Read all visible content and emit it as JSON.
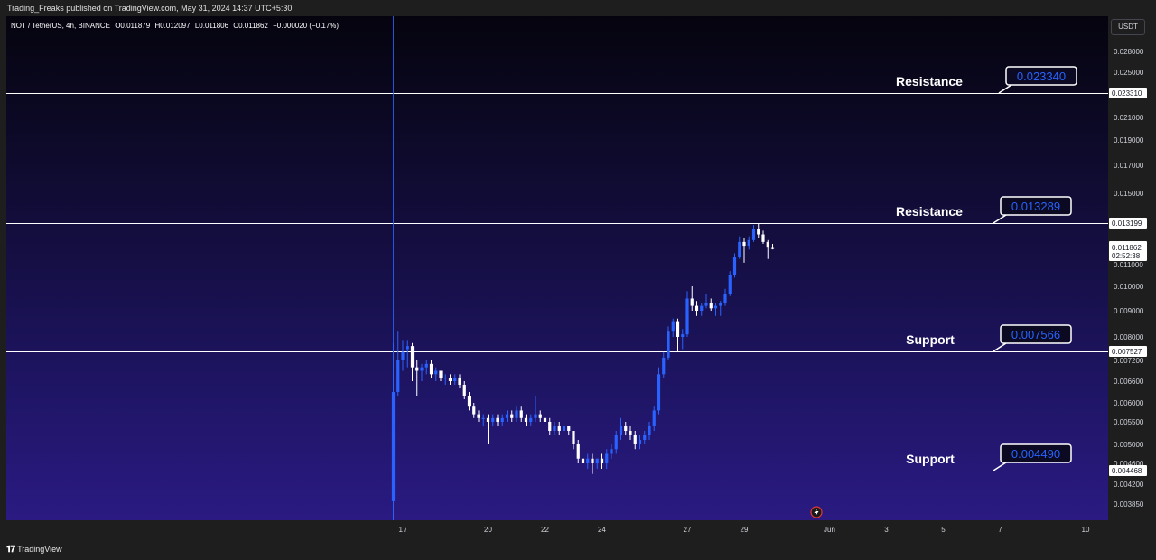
{
  "publish_text": "Trading_Freaks published on TradingView.com, May 31, 2024 14:37 UTC+5:30",
  "legend": {
    "symbol": "NOT / TetherUS, 4h, BINANCE",
    "open": "O0.011879",
    "high": "H0.012097",
    "low": "L0.011806",
    "close": "C0.011862",
    "change": "−0.000020 (−0.17%)"
  },
  "currency": "USDT",
  "brand": "TradingView",
  "colors": {
    "bull": "#2962ff",
    "bear": "#ffffff",
    "level_line": "#ffffff",
    "callout_text": "#2962ff",
    "crosshair": "#2962ff"
  },
  "chart_data": {
    "type": "candlestick",
    "interval": "4h",
    "price_ticks": [
      0.028,
      0.025,
      0.021,
      0.019,
      0.017,
      0.015,
      0.011,
      0.01,
      0.009,
      0.008,
      0.0072,
      0.0066,
      0.006,
      0.0055,
      0.005,
      0.0046,
      0.0042,
      0.00385
    ],
    "price_tick_labels": [
      "0.028000",
      "0.025000",
      "0.021000",
      "0.019000",
      "0.017000",
      "0.015000",
      "0.011000",
      "0.010000",
      "0.009000",
      "0.008000",
      "0.007200",
      "0.006600",
      "0.006000",
      "0.005500",
      "0.005000",
      "0.004600",
      "0.004200",
      "0.003850"
    ],
    "x_ticks": [
      {
        "label": "17",
        "day": 17
      },
      {
        "label": "20",
        "day": 20
      },
      {
        "label": "22",
        "day": 22
      },
      {
        "label": "24",
        "day": 24
      },
      {
        "label": "27",
        "day": 27
      },
      {
        "label": "29",
        "day": 29
      },
      {
        "label": "Jun",
        "day": 32
      },
      {
        "label": "3",
        "day": 34
      },
      {
        "label": "5",
        "day": 36
      },
      {
        "label": "7",
        "day": 38
      },
      {
        "label": "10",
        "day": 41
      }
    ],
    "levels": [
      {
        "label": "Resistance",
        "callout": "0.023340",
        "price": 0.02331,
        "axis_label": "0.023310"
      },
      {
        "label": "Resistance",
        "callout": "0.013289",
        "price": 0.013199,
        "axis_label": "0.013199"
      },
      {
        "label": "Support",
        "callout": "0.007566",
        "price": 0.007527,
        "axis_label": "0.007527"
      },
      {
        "label": "Support",
        "callout": "0.004490",
        "price": 0.004468,
        "axis_label": "0.004468"
      }
    ],
    "current_price": {
      "value": 0.011862,
      "label": "0.011862",
      "countdown": "02:52:38"
    },
    "candles": [
      {
        "o": 0.0039,
        "h": 0.0078,
        "l": 0.0034,
        "c": 0.0063
      },
      {
        "o": 0.0063,
        "h": 0.0082,
        "l": 0.0062,
        "c": 0.0072
      },
      {
        "o": 0.0072,
        "h": 0.0079,
        "l": 0.0069,
        "c": 0.0075
      },
      {
        "o": 0.0076,
        "h": 0.0079,
        "l": 0.007,
        "c": 0.0077
      },
      {
        "o": 0.0077,
        "h": 0.0078,
        "l": 0.0066,
        "c": 0.007
      },
      {
        "o": 0.007,
        "h": 0.0072,
        "l": 0.0062,
        "c": 0.0069
      },
      {
        "o": 0.0069,
        "h": 0.0071,
        "l": 0.0066,
        "c": 0.007
      },
      {
        "o": 0.007,
        "h": 0.0072,
        "l": 0.0068,
        "c": 0.0071
      },
      {
        "o": 0.0071,
        "h": 0.0072,
        "l": 0.0067,
        "c": 0.0068
      },
      {
        "o": 0.0068,
        "h": 0.007,
        "l": 0.0066,
        "c": 0.0069
      },
      {
        "o": 0.0069,
        "h": 0.0069,
        "l": 0.0066,
        "c": 0.0067
      },
      {
        "o": 0.0067,
        "h": 0.0068,
        "l": 0.0065,
        "c": 0.0067
      },
      {
        "o": 0.0067,
        "h": 0.0068,
        "l": 0.0065,
        "c": 0.0066
      },
      {
        "o": 0.0066,
        "h": 0.0068,
        "l": 0.0065,
        "c": 0.0067
      },
      {
        "o": 0.0067,
        "h": 0.0068,
        "l": 0.0064,
        "c": 0.0065
      },
      {
        "o": 0.0065,
        "h": 0.0066,
        "l": 0.0061,
        "c": 0.0062
      },
      {
        "o": 0.0062,
        "h": 0.0063,
        "l": 0.0058,
        "c": 0.0059
      },
      {
        "o": 0.0059,
        "h": 0.006,
        "l": 0.0056,
        "c": 0.0057
      },
      {
        "o": 0.0057,
        "h": 0.0058,
        "l": 0.0055,
        "c": 0.0056
      },
      {
        "o": 0.0056,
        "h": 0.0057,
        "l": 0.0054,
        "c": 0.0056
      },
      {
        "o": 0.0056,
        "h": 0.0057,
        "l": 0.005,
        "c": 0.0055
      },
      {
        "o": 0.0055,
        "h": 0.0057,
        "l": 0.0054,
        "c": 0.0056
      },
      {
        "o": 0.0056,
        "h": 0.0057,
        "l": 0.0054,
        "c": 0.0055
      },
      {
        "o": 0.0055,
        "h": 0.0057,
        "l": 0.0054,
        "c": 0.0056
      },
      {
        "o": 0.0056,
        "h": 0.0058,
        "l": 0.0055,
        "c": 0.0057
      },
      {
        "o": 0.0057,
        "h": 0.0058,
        "l": 0.0055,
        "c": 0.0056
      },
      {
        "o": 0.0056,
        "h": 0.0059,
        "l": 0.0055,
        "c": 0.0058
      },
      {
        "o": 0.0058,
        "h": 0.0059,
        "l": 0.0055,
        "c": 0.0056
      },
      {
        "o": 0.0056,
        "h": 0.0057,
        "l": 0.0054,
        "c": 0.0055
      },
      {
        "o": 0.0055,
        "h": 0.0057,
        "l": 0.0054,
        "c": 0.0056
      },
      {
        "o": 0.0056,
        "h": 0.0062,
        "l": 0.0055,
        "c": 0.0057
      },
      {
        "o": 0.0057,
        "h": 0.0058,
        "l": 0.0055,
        "c": 0.0056
      },
      {
        "o": 0.0056,
        "h": 0.0057,
        "l": 0.0054,
        "c": 0.0055
      },
      {
        "o": 0.0055,
        "h": 0.0056,
        "l": 0.0052,
        "c": 0.0053
      },
      {
        "o": 0.0053,
        "h": 0.0055,
        "l": 0.0052,
        "c": 0.0054
      },
      {
        "o": 0.0054,
        "h": 0.0055,
        "l": 0.0052,
        "c": 0.0053
      },
      {
        "o": 0.0053,
        "h": 0.0055,
        "l": 0.0052,
        "c": 0.0054
      },
      {
        "o": 0.0054,
        "h": 0.0054,
        "l": 0.0052,
        "c": 0.0053
      },
      {
        "o": 0.0053,
        "h": 0.0053,
        "l": 0.0049,
        "c": 0.005
      },
      {
        "o": 0.005,
        "h": 0.0051,
        "l": 0.0046,
        "c": 0.0047
      },
      {
        "o": 0.0047,
        "h": 0.0048,
        "l": 0.0045,
        "c": 0.0046
      },
      {
        "o": 0.0046,
        "h": 0.0048,
        "l": 0.0045,
        "c": 0.0047
      },
      {
        "o": 0.0047,
        "h": 0.0048,
        "l": 0.0044,
        "c": 0.0046
      },
      {
        "o": 0.0046,
        "h": 0.0047,
        "l": 0.0045,
        "c": 0.0047
      },
      {
        "o": 0.0047,
        "h": 0.0048,
        "l": 0.0045,
        "c": 0.0046
      },
      {
        "o": 0.0046,
        "h": 0.0049,
        "l": 0.0045,
        "c": 0.0048
      },
      {
        "o": 0.0048,
        "h": 0.005,
        "l": 0.0047,
        "c": 0.0049
      },
      {
        "o": 0.0049,
        "h": 0.0053,
        "l": 0.0048,
        "c": 0.0052
      },
      {
        "o": 0.0052,
        "h": 0.0056,
        "l": 0.0051,
        "c": 0.0054
      },
      {
        "o": 0.0054,
        "h": 0.0055,
        "l": 0.0052,
        "c": 0.0053
      },
      {
        "o": 0.0053,
        "h": 0.0054,
        "l": 0.0051,
        "c": 0.0052
      },
      {
        "o": 0.0052,
        "h": 0.0053,
        "l": 0.0049,
        "c": 0.005
      },
      {
        "o": 0.005,
        "h": 0.0052,
        "l": 0.0049,
        "c": 0.0051
      },
      {
        "o": 0.0051,
        "h": 0.0053,
        "l": 0.005,
        "c": 0.0052
      },
      {
        "o": 0.0052,
        "h": 0.0055,
        "l": 0.0051,
        "c": 0.0054
      },
      {
        "o": 0.0054,
        "h": 0.0059,
        "l": 0.0053,
        "c": 0.0058
      },
      {
        "o": 0.0058,
        "h": 0.007,
        "l": 0.0057,
        "c": 0.0068
      },
      {
        "o": 0.0068,
        "h": 0.0075,
        "l": 0.0067,
        "c": 0.0073
      },
      {
        "o": 0.0073,
        "h": 0.0084,
        "l": 0.0072,
        "c": 0.0082
      },
      {
        "o": 0.0082,
        "h": 0.0087,
        "l": 0.008,
        "c": 0.0086
      },
      {
        "o": 0.0086,
        "h": 0.0087,
        "l": 0.0075,
        "c": 0.008
      },
      {
        "o": 0.008,
        "h": 0.0083,
        "l": 0.0076,
        "c": 0.0081
      },
      {
        "o": 0.0081,
        "h": 0.0098,
        "l": 0.008,
        "c": 0.0095
      },
      {
        "o": 0.0095,
        "h": 0.01,
        "l": 0.009,
        "c": 0.0092
      },
      {
        "o": 0.0092,
        "h": 0.0094,
        "l": 0.0088,
        "c": 0.009
      },
      {
        "o": 0.009,
        "h": 0.0093,
        "l": 0.0088,
        "c": 0.0092
      },
      {
        "o": 0.0092,
        "h": 0.0097,
        "l": 0.0091,
        "c": 0.0093
      },
      {
        "o": 0.0093,
        "h": 0.0095,
        "l": 0.009,
        "c": 0.0091
      },
      {
        "o": 0.0091,
        "h": 0.0093,
        "l": 0.0088,
        "c": 0.0092
      },
      {
        "o": 0.0092,
        "h": 0.0094,
        "l": 0.0088,
        "c": 0.0093
      },
      {
        "o": 0.0093,
        "h": 0.0099,
        "l": 0.0092,
        "c": 0.0097
      },
      {
        "o": 0.0097,
        "h": 0.0107,
        "l": 0.0096,
        "c": 0.0105
      },
      {
        "o": 0.0105,
        "h": 0.0116,
        "l": 0.0104,
        "c": 0.0114
      },
      {
        "o": 0.0114,
        "h": 0.0125,
        "l": 0.0113,
        "c": 0.0122
      },
      {
        "o": 0.0122,
        "h": 0.0124,
        "l": 0.0111,
        "c": 0.012
      },
      {
        "o": 0.012,
        "h": 0.0125,
        "l": 0.0118,
        "c": 0.0123
      },
      {
        "o": 0.0123,
        "h": 0.0131,
        "l": 0.0122,
        "c": 0.0129
      },
      {
        "o": 0.0129,
        "h": 0.0132,
        "l": 0.0124,
        "c": 0.0126
      },
      {
        "o": 0.0126,
        "h": 0.0128,
        "l": 0.0121,
        "c": 0.0122
      },
      {
        "o": 0.0122,
        "h": 0.0123,
        "l": 0.0113,
        "c": 0.0119
      },
      {
        "o": 0.011879,
        "h": 0.012097,
        "l": 0.011806,
        "c": 0.011862
      }
    ]
  }
}
